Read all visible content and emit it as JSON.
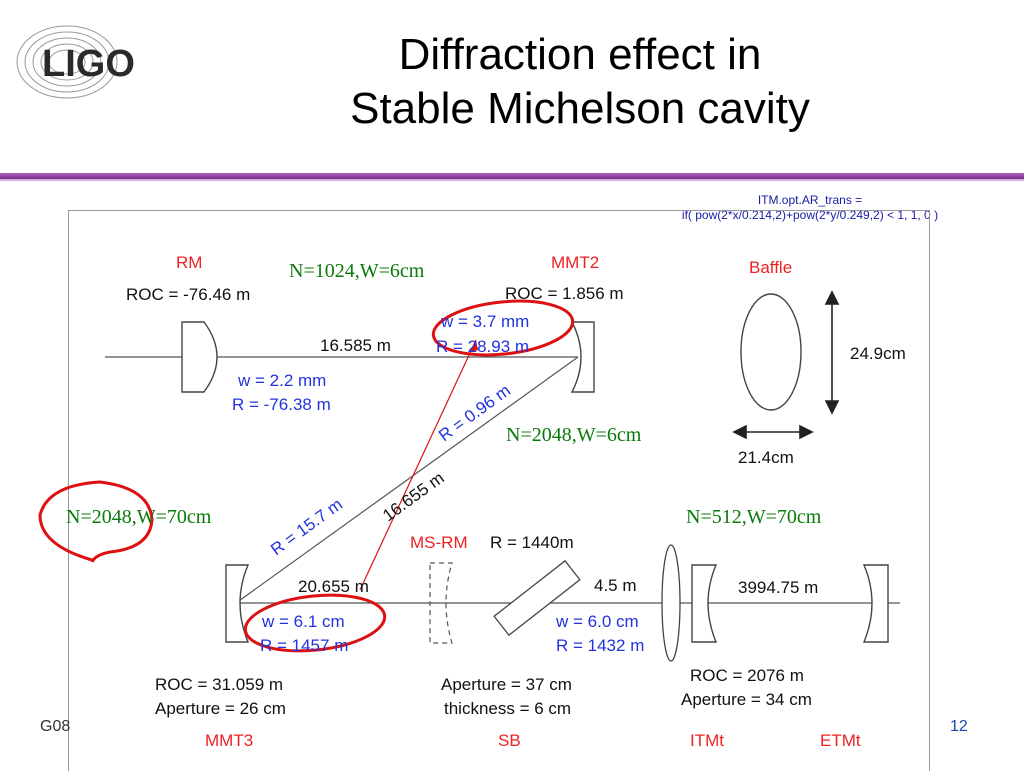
{
  "slide": {
    "title_line1": "Diffraction effect in",
    "title_line2": "Stable Michelson cavity",
    "logo_text": "LIGO",
    "itm_note_line1": "ITM.opt.AR_trans =",
    "itm_note_line2": "if( pow(2*x/0.214,2)+pow(2*y/0.249,2) < 1, 1, 0 )",
    "footer_left": "G08",
    "page_number": "12"
  },
  "diagram": {
    "rm": {
      "name": "RM",
      "roc": "ROC = -76.46 m",
      "w": "w = 2.2 mm",
      "r": "R = -76.38 m"
    },
    "mmt2": {
      "name": "MMT2",
      "roc": "ROC = 1.856 m",
      "w": "w = 3.7 mm",
      "r": "R = 28.93 m"
    },
    "baffle": {
      "name": "Baffle",
      "height": "24.9cm",
      "width": "21.4cm"
    },
    "dist_top": "16.585 m",
    "r_diag_small": "R = 0.96 m",
    "r_diag_large": "R = 15.7 m",
    "dist_diag": "16.655 m",
    "msrm": {
      "name": "MS-RM",
      "r": "R = 1440m"
    },
    "dist_bottom": "20.655 m",
    "mmt3": {
      "name": "MMT3",
      "w": "w = 6.1 cm",
      "r": "R = 1457 m",
      "roc": "ROC = 31.059 m",
      "aperture": "Aperture = 26 cm"
    },
    "sb": {
      "name": "SB",
      "aperture": "Aperture = 37 cm",
      "thickness": "thickness = 6 cm",
      "w": "w = 6.0 cm",
      "r": "R = 1432 m"
    },
    "dist_sb": "4.5 m",
    "dist_arm": "3994.75 m",
    "itmt": {
      "name": "ITMt",
      "roc": "ROC = 2076 m",
      "aperture": "Aperture = 34 cm"
    },
    "etmt": {
      "name": "ETMt"
    }
  },
  "annotations": {
    "n1024": "N=1024,W=6cm",
    "n2048_6": "N=2048,W=6cm",
    "n2048_70": "N=2048,W=70cm",
    "n512_70": "N=512,W=70cm"
  },
  "colors": {
    "accent_rule": "#7a2b8a",
    "label_red": "#ee2222",
    "label_blue": "#2233dd",
    "annotation_green": "#0a7a0a",
    "ink_red": "#dd1111"
  }
}
